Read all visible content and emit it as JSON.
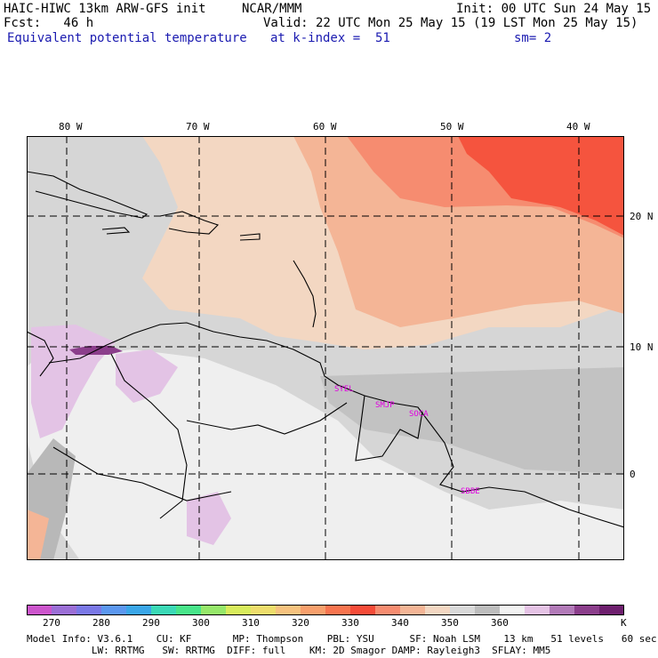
{
  "header": {
    "model": "HAIC-HIWC 13km ARW-GFS init",
    "org": "NCAR/MMM",
    "init": "Init: 00 UTC Sun 24 May 15",
    "fcst": "Fcst:   46 h",
    "valid": "Valid: 22 UTC Mon 25 May 15 (19 LST Mon 25 May 15)",
    "field": "Equivalent potential temperature",
    "level": "at k-index =  51",
    "smooth": "sm= 2"
  },
  "lon_labels": [
    "80 W",
    "70 W",
    "60 W",
    "50 W",
    "40 W"
  ],
  "lat_labels": [
    "20 N",
    "10 N",
    "0"
  ],
  "stations": [
    "SYEL",
    "SMJP",
    "SOCA",
    "SBBE"
  ],
  "colorbar": {
    "colors": [
      "#cc55cc",
      "#9b6fd6",
      "#7a78e6",
      "#5b97ef",
      "#3aa6e8",
      "#3bd9b6",
      "#48e58a",
      "#96e86a",
      "#d8ec5c",
      "#eedd6c",
      "#f6c27e",
      "#f79f6c",
      "#f7744f",
      "#f54b38",
      "#f68c70",
      "#f4b596",
      "#f3d7c2",
      "#d9d9d9",
      "#bdbdbd",
      "#f2f2f2",
      "#e5c3e5",
      "#b27ab8",
      "#8b3e8b",
      "#6e1f6e"
    ],
    "tick_labels": [
      "270",
      "280",
      "290",
      "300",
      "310",
      "320",
      "330",
      "340",
      "350",
      "360"
    ],
    "unit": "K"
  },
  "footer": {
    "line1": "Model Info: V3.6.1    CU: KF       MP: Thompson    PBL: YSU      SF: Noah LSM    13 km   51 levels   60 sec",
    "line2": "           LW: RRTMG   SW: RRTMG  DIFF: full    KM: 2D Smagor DAMP: Rayleigh3  SFLAY: MM5"
  }
}
